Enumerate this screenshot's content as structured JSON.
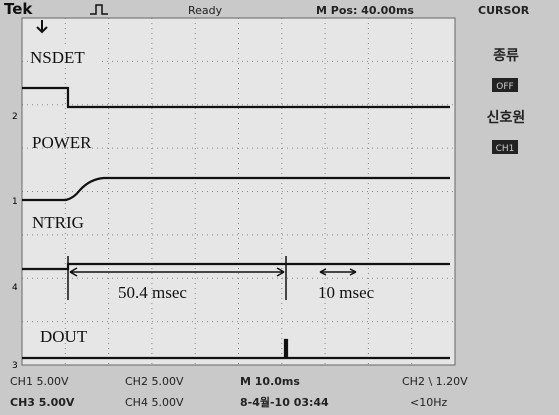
{
  "header": {
    "brand": "Tek",
    "state": "Ready",
    "position": "M Pos: 40.00ms",
    "menu": "CURSOR"
  },
  "panel": {
    "type_label": "종류",
    "type_value": "OFF",
    "source_label": "신호원",
    "source_value": "CH1"
  },
  "signals": [
    "NSDET",
    "POWER",
    "NTRIG",
    "DOUT"
  ],
  "annotations": [
    "50.4 msec",
    "10 msec"
  ],
  "channel_markers": [
    "2",
    "1",
    "4",
    "3"
  ],
  "status": {
    "row1": [
      "CH1 5.00V",
      "CH2 5.00V",
      "M 10.0ms",
      "CH2 \\ 1.20V"
    ],
    "row2": [
      "CH3 5.00V",
      "CH4 5.00V",
      "8-4월-10 03:44",
      "<10Hz"
    ]
  }
}
